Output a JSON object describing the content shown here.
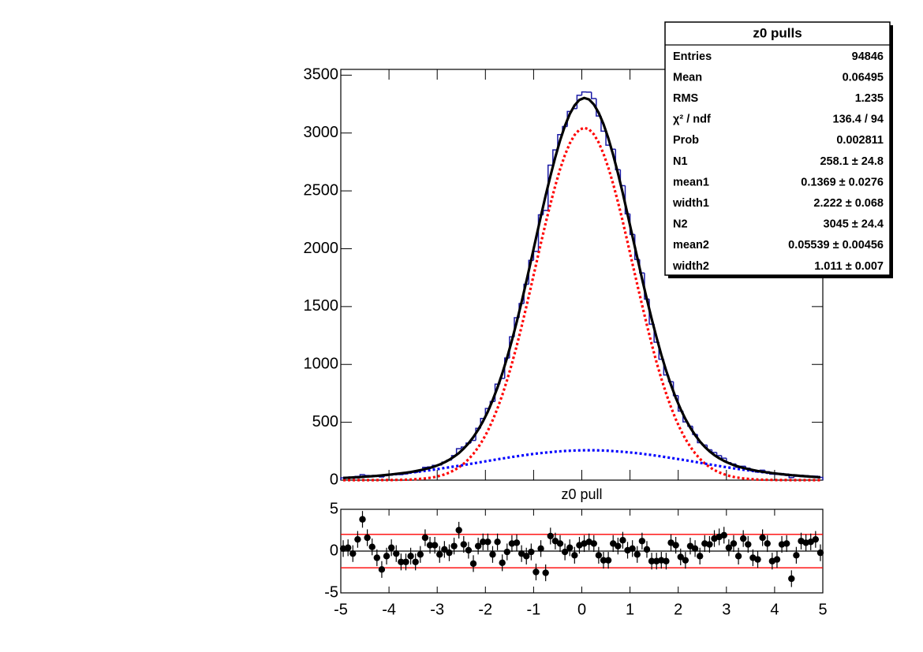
{
  "chart_data": [
    {
      "type": "histogram",
      "xlabel": "z0 pull",
      "bins": [
        -5,
        -4.9,
        -4.8,
        -4.7,
        -4.6,
        -4.5,
        -4.4,
        -4.3,
        -4.2,
        -4.1,
        -4,
        -3.9,
        -3.8,
        -3.7,
        -3.6,
        -3.5,
        -3.4,
        -3.3,
        -3.2,
        -3.1,
        -3,
        -2.9,
        -2.8,
        -2.7,
        -2.6,
        -2.5,
        -2.4,
        -2.3,
        -2.2,
        -2.1,
        -2,
        -1.9,
        -1.8,
        -1.7,
        -1.6,
        -1.5,
        -1.4,
        -1.3,
        -1.2,
        -1.1,
        -1,
        -0.9,
        -0.8,
        -0.7,
        -0.6,
        -0.5,
        -0.4,
        -0.3,
        -0.2,
        -0.1,
        0,
        0.1,
        0.2,
        0.3,
        0.4,
        0.5,
        0.6,
        0.7,
        0.8,
        0.9,
        1,
        1.1,
        1.2,
        1.3,
        1.4,
        1.5,
        1.6,
        1.7,
        1.8,
        1.9,
        2,
        2.1,
        2.2,
        2.3,
        2.4,
        2.5,
        2.6,
        2.7,
        2.8,
        2.9,
        3,
        3.1,
        3.2,
        3.3,
        3.4,
        3.5,
        3.6,
        3.7,
        3.8,
        3.9,
        4,
        4.1,
        4.2,
        4.3,
        4.4,
        4.5,
        4.6,
        4.7,
        4.8,
        4.9,
        5
      ],
      "values": [
        20,
        23,
        22,
        32,
        48,
        40,
        37,
        32,
        27,
        41,
        52,
        51,
        48,
        54,
        66,
        67,
        82,
        111,
        114,
        128,
        130,
        156,
        173,
        212,
        272,
        286,
        320,
        343,
        448,
        533,
        619,
        680,
        830,
        879,
        1055,
        1238,
        1404,
        1526,
        1693,
        1899,
        1977,
        2293,
        2331,
        2722,
        2854,
        2986,
        3056,
        3186,
        3211,
        3326,
        3355,
        3353,
        3298,
        3147,
        3016,
        2895,
        2860,
        2683,
        2545,
        2301,
        2123,
        1907,
        1790,
        1565,
        1348,
        1192,
        1045,
        909,
        851,
        731,
        597,
        503,
        466,
        395,
        324,
        303,
        262,
        239,
        212,
        190,
        152,
        140,
        111,
        120,
        103,
        80,
        70,
        86,
        73,
        52,
        49,
        57,
        53,
        21,
        36,
        43,
        39,
        36,
        34,
        24
      ],
      "color": "#1a1aa6",
      "x": [
        -4.95,
        -4.85,
        -4.75,
        -4.65,
        -4.55,
        -4.45,
        -4.35,
        -4.25,
        -4.15,
        -4.05,
        -3.95,
        -3.85,
        -3.75,
        -3.65,
        -3.55,
        -3.45,
        -3.35,
        -3.25,
        -3.15,
        -3.05,
        -2.95,
        -2.85,
        -2.75,
        -2.65,
        -2.55,
        -2.45,
        -2.35,
        -2.25,
        -2.15,
        -2.05,
        -1.95,
        -1.85,
        -1.75,
        -1.65,
        -1.55,
        -1.45,
        -1.35,
        -1.25,
        -1.15,
        -1.05,
        -0.95,
        -0.85,
        -0.75,
        -0.65,
        -0.55,
        -0.45,
        -0.35,
        -0.25,
        -0.15,
        -0.05,
        0.05,
        0.15,
        0.25,
        0.35,
        0.45,
        0.55,
        0.65,
        0.75,
        0.85,
        0.95,
        1.05,
        1.15,
        1.25,
        1.35,
        1.45,
        1.55,
        1.65,
        1.75,
        1.85,
        1.95,
        2.05,
        2.15,
        2.25,
        2.35,
        2.45,
        2.55,
        2.65,
        2.75,
        2.85,
        2.95,
        3.05,
        3.15,
        3.25,
        3.35,
        3.45,
        3.55,
        3.65,
        3.75,
        3.85,
        3.95,
        4.05,
        4.15,
        4.25,
        4.35,
        4.45,
        4.55,
        4.65,
        4.75,
        4.85,
        4.95
      ],
      "curves": [
        {
          "color": "#ff0000",
          "dashed": true,
          "values": [
            0,
            0,
            0,
            0,
            0,
            0,
            0,
            0,
            1,
            1,
            1,
            2,
            3,
            4,
            5,
            8,
            11,
            15,
            20,
            27,
            37,
            49,
            65,
            85,
            110,
            142,
            180,
            227,
            283,
            349,
            426,
            517,
            619,
            735,
            865,
            1007,
            1161,
            1326,
            1500,
            1680,
            1863,
            2045,
            2222,
            2388,
            2545,
            2688,
            2810,
            2910,
            2983,
            3029,
            3045,
            3032,
            2989,
            2918,
            2821,
            2701,
            2561,
            2404,
            2235,
            2055,
            1872,
            1692,
            1514,
            1341,
            1175,
            1020,
            877,
            748,
            631,
            526,
            435,
            356,
            289,
            232,
            184,
            145,
            113,
            87,
            67,
            51,
            38,
            28,
            21,
            15,
            11,
            8,
            5,
            4,
            3,
            2,
            1,
            1,
            1,
            0,
            0,
            0,
            0,
            0,
            0,
            0
          ]
        },
        {
          "color": "#0000ff",
          "dashed": true,
          "values": [
            19,
            21,
            23,
            25,
            28,
            31,
            34,
            37,
            40,
            44,
            48,
            52,
            56,
            60,
            65,
            70,
            75,
            81,
            86,
            92,
            98,
            105,
            111,
            118,
            124,
            131,
            138,
            145,
            152,
            159,
            166,
            173,
            180,
            187,
            193,
            200,
            206,
            212,
            218,
            224,
            229,
            234,
            238,
            242,
            246,
            249,
            252,
            254,
            256,
            257,
            258,
            258,
            258,
            257,
            256,
            254,
            251,
            248,
            245,
            241,
            237,
            233,
            228,
            222,
            217,
            211,
            205,
            198,
            192,
            185,
            179,
            172,
            165,
            158,
            150,
            143,
            136,
            129,
            122,
            115,
            109,
            102,
            96,
            90,
            85,
            79,
            74,
            69,
            64,
            59,
            55,
            50,
            46,
            43,
            39,
            36,
            33,
            30,
            27,
            25
          ]
        },
        {
          "color": "#000000",
          "dashed": false,
          "values": [
            19,
            21,
            23,
            25,
            28,
            31,
            34,
            37,
            41,
            45,
            49,
            54,
            59,
            64,
            70,
            78,
            86,
            96,
            106,
            119,
            135,
            154,
            176,
            203,
            234,
            273,
            318,
            372,
            435,
            508,
            592,
            690,
            799,
            922,
            1058,
            1207,
            1367,
            1538,
            1718,
            1904,
            2092,
            2279,
            2460,
            2630,
            2791,
            2937,
            3062,
            3164,
            3239,
            3286,
            3303,
            3290,
            3247,
            3175,
            3077,
            2955,
            2812,
            2652,
            2480,
            2296,
            2109,
            1925,
            1740,
            1563,
            1393,
            1234,
            1082,
            946,
            823,
            711,
            614,
            528,
            454,
            390,
            334,
            288,
            249,
            216,
            189,
            166,
            147,
            130,
            117,
            105,
            96,
            87,
            79,
            72,
            67,
            61,
            56,
            51,
            47,
            43,
            40,
            36,
            33,
            30,
            27,
            25
          ]
        }
      ],
      "xlim": [
        -5,
        5
      ],
      "ylim": [
        0,
        3550
      ],
      "xticks": [
        -5,
        -4,
        -3,
        -2,
        -1,
        0,
        1,
        2,
        3,
        4,
        5
      ],
      "yticks": [
        0,
        500,
        1000,
        1500,
        2000,
        2500,
        3000,
        3500
      ],
      "stats": {
        "title": "z0 pulls",
        "rows": [
          [
            "Entries",
            94846
          ],
          [
            "Mean",
            0.06495
          ],
          [
            "RMS",
            1.235
          ],
          [
            "χ² / ndf",
            "136.4 / 94"
          ],
          [
            "Prob",
            0.002811
          ],
          [
            "N1",
            "258.1 ± 24.8"
          ],
          [
            "mean1",
            "0.1369 ± 0.0276"
          ],
          [
            "width1",
            "2.222 ± 0.068"
          ],
          [
            "N2",
            "3045 ± 24.4"
          ],
          [
            "mean2",
            "0.05539 ± 0.00456"
          ],
          [
            "width2",
            "1.011 ± 0.007"
          ]
        ]
      }
    },
    {
      "type": "scatter",
      "x": [
        -4.95,
        -4.85,
        -4.75,
        -4.65,
        -4.55,
        -4.45,
        -4.35,
        -4.25,
        -4.15,
        -4.05,
        -3.95,
        -3.85,
        -3.75,
        -3.65,
        -3.55,
        -3.45,
        -3.35,
        -3.25,
        -3.15,
        -3.05,
        -2.95,
        -2.85,
        -2.75,
        -2.65,
        -2.55,
        -2.45,
        -2.35,
        -2.25,
        -2.15,
        -2.05,
        -1.95,
        -1.85,
        -1.75,
        -1.65,
        -1.55,
        -1.45,
        -1.35,
        -1.25,
        -1.15,
        -1.05,
        -0.95,
        -0.85,
        -0.75,
        -0.65,
        -0.55,
        -0.45,
        -0.35,
        -0.25,
        -0.15,
        -0.05,
        0.05,
        0.15,
        0.25,
        0.35,
        0.45,
        0.55,
        0.65,
        0.75,
        0.85,
        0.95,
        1.05,
        1.15,
        1.25,
        1.35,
        1.45,
        1.55,
        1.65,
        1.75,
        1.85,
        1.95,
        2.05,
        2.15,
        2.25,
        2.35,
        2.45,
        2.55,
        2.65,
        2.75,
        2.85,
        2.95,
        3.05,
        3.15,
        3.25,
        3.35,
        3.45,
        3.55,
        3.65,
        3.75,
        3.85,
        3.95,
        4.05,
        4.15,
        4.25,
        4.35,
        4.45,
        4.55,
        4.65,
        4.75,
        4.85,
        4.95
      ],
      "values": [
        0.3,
        0.4,
        -0.3,
        1.4,
        3.8,
        1.6,
        0.5,
        -0.8,
        -2.2,
        -0.6,
        0.4,
        -0.3,
        -1.3,
        -1.3,
        -0.6,
        -1.3,
        -0.4,
        1.6,
        0.7,
        0.7,
        -0.4,
        0.2,
        -0.2,
        0.6,
        2.5,
        0.8,
        0.1,
        -1.5,
        0.6,
        1.1,
        1.1,
        -0.4,
        1.1,
        -1.4,
        -0.1,
        0.9,
        1.0,
        -0.3,
        -0.6,
        -0.1,
        -2.5,
        0.3,
        -2.6,
        1.8,
        1.2,
        0.9,
        -0.1,
        0.4,
        -0.5,
        0.7,
        0.9,
        1.1,
        0.9,
        -0.5,
        -1.1,
        -1.1,
        0.9,
        0.6,
        1.3,
        0.1,
        0.3,
        -0.4,
        1.2,
        0.2,
        -1.2,
        -1.2,
        -1.1,
        -1.2,
        1.0,
        0.7,
        -0.7,
        -1.1,
        0.6,
        0.3,
        -0.6,
        0.9,
        0.8,
        1.5,
        1.7,
        1.9,
        0.4,
        0.9,
        -0.6,
        1.5,
        0.8,
        -0.8,
        -1.0,
        1.6,
        0.9,
        -1.2,
        -1.0,
        0.8,
        0.9,
        -3.3,
        -0.5,
        1.2,
        1.0,
        1.1,
        1.4,
        -0.2
      ],
      "error": 1,
      "color": "#000000",
      "lines": [
        {
          "value": 2,
          "color": "#ff0000"
        },
        {
          "value": -2,
          "color": "#ff0000"
        },
        {
          "value": 0,
          "color": "#000000"
        }
      ],
      "xlim": [
        -5,
        5
      ],
      "ylim": [
        -5,
        5
      ],
      "xticks": [
        -5,
        -4,
        -3,
        -2,
        -1,
        0,
        1,
        2,
        3,
        4,
        5
      ],
      "yticks": [
        -5,
        0,
        5
      ]
    }
  ]
}
